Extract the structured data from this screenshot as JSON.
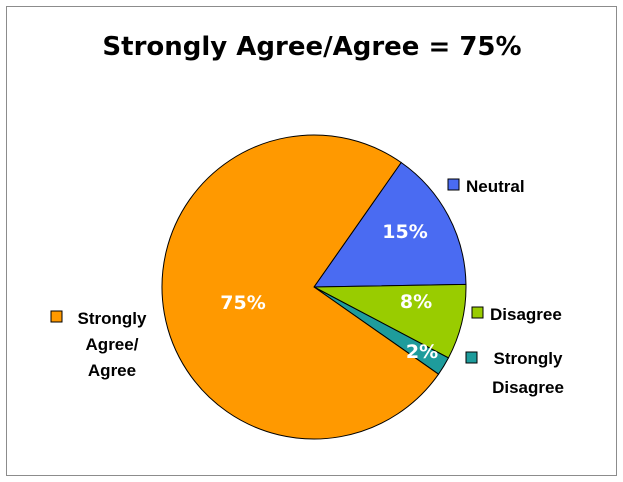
{
  "chart_data": {
    "type": "pie",
    "title": "Strongly Agree/Agree = 75%",
    "categories": [
      "Neutral",
      "Disagree",
      "Strongly Disagree",
      "Strongly Agree/ Agree"
    ],
    "values": [
      15,
      8,
      2,
      75
    ],
    "value_labels": [
      "15%",
      "8%",
      "2%",
      "75%"
    ],
    "legend_lines": [
      [
        "Neutral"
      ],
      [
        "Disagree"
      ],
      [
        "Strongly",
        "Disagree"
      ],
      [
        "Strongly",
        "Agree/",
        "Agree"
      ]
    ],
    "colors": [
      "#4A6BF2",
      "#99CC00",
      "#1E9C9C",
      "#FF9900"
    ],
    "legend": "beside-slices"
  }
}
